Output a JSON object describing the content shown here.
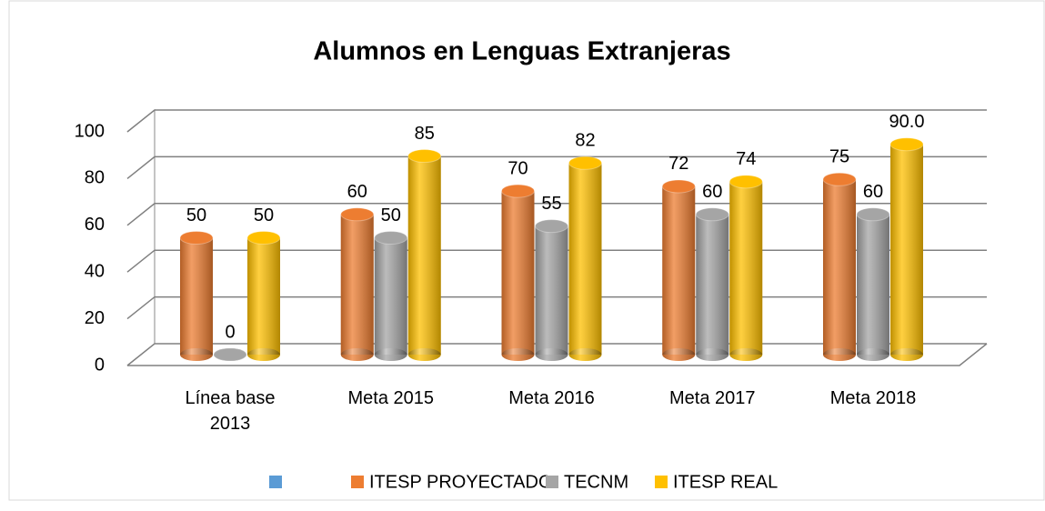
{
  "chart_data": {
    "type": "bar3d",
    "title": "Alumnos en Lenguas Extranjeras",
    "categories": [
      "Línea base 2013",
      "Meta 2015",
      "Meta 2016",
      "Meta 2017",
      "Meta 2018"
    ],
    "series": [
      {
        "name": "ITESP PROYECTADO",
        "color": "#ed7d31",
        "values": [
          50,
          60,
          70,
          72,
          75
        ]
      },
      {
        "name": "TECNM",
        "color": "#a5a5a5",
        "values": [
          0,
          50,
          55,
          60,
          60
        ]
      },
      {
        "name": "ITESP REAL",
        "color": "#ffc000",
        "values": [
          50,
          85,
          82,
          74,
          90
        ],
        "value_labels": [
          "50",
          "85",
          "82",
          "74",
          "90.0"
        ]
      }
    ],
    "ylim": [
      0,
      100
    ],
    "yticks": [
      0,
      20,
      40,
      60,
      80,
      100
    ],
    "grid": true,
    "legend": "bottom"
  }
}
